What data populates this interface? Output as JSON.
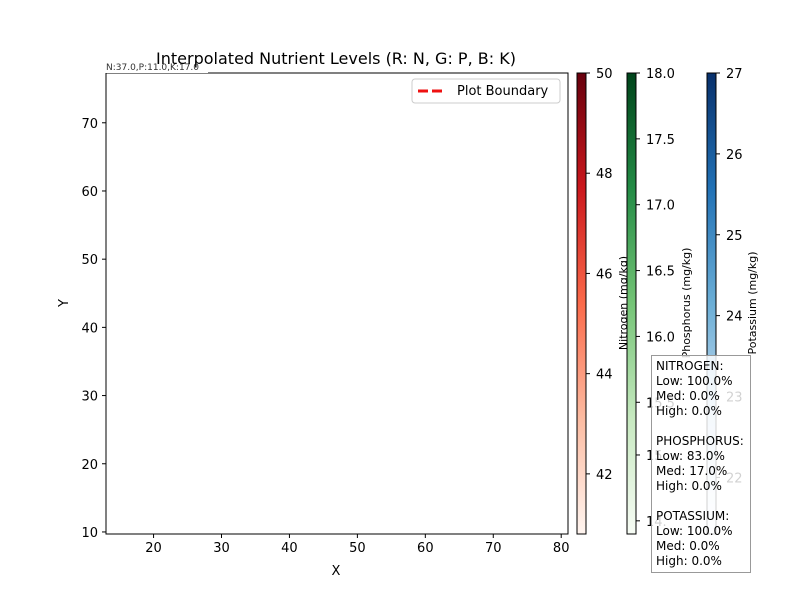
{
  "chart_data": {
    "type": "heatmap",
    "title": "Interpolated Nutrient Levels (R: N, G: P, B: K)",
    "xlabel": "X",
    "ylabel": "Y",
    "xlim": [
      13,
      81
    ],
    "ylim": [
      9.7,
      77.3
    ],
    "x_ticks": [
      20,
      30,
      40,
      50,
      60,
      70,
      80
    ],
    "y_ticks": [
      10,
      20,
      30,
      40,
      50,
      60,
      70
    ],
    "grid": false,
    "legend": {
      "placement": "top-right",
      "entries": [
        {
          "label": "Plot Boundary",
          "color": "#ee1111",
          "style": "dashed"
        }
      ]
    },
    "point_annotation": "N:37.0,P:11.0,K:17.0",
    "colorbars": [
      {
        "label": "Nitrogen (mg/kg)",
        "range": [
          40.8,
          50
        ],
        "ticks": [
          42,
          44,
          46,
          48,
          50
        ],
        "tick_labels": [
          "42",
          "44",
          "46",
          "48",
          "50"
        ],
        "colors": [
          "#fff5f0",
          "#fcbba1",
          "#fb6a4a",
          "#cb181d",
          "#67000d"
        ]
      },
      {
        "label": "Phosphorus (mg/kg)",
        "range": [
          14.5,
          18.0
        ],
        "ticks": [
          14.6,
          15.1,
          15.5,
          16.0,
          16.5,
          17.0,
          17.5,
          18.0
        ],
        "tick_labels": [
          "14.",
          "15.",
          "15.5",
          "16.0",
          "16.5",
          "17.0",
          "17.5",
          "18.0"
        ],
        "colors": [
          "#f7fcf5",
          "#c7e9c0",
          "#74c476",
          "#238b45",
          "#00441b"
        ]
      },
      {
        "label": "Potassium (mg/kg)",
        "range": [
          21.3,
          27
        ],
        "ticks": [
          22,
          23,
          24,
          25,
          26,
          27
        ],
        "tick_labels": [
          "22",
          "23",
          "24",
          "25",
          "26",
          "27"
        ],
        "colors": [
          "#f7fbff",
          "#c6dbef",
          "#6baed6",
          "#2171b5",
          "#08306b"
        ]
      }
    ]
  },
  "stats_box": {
    "lines": [
      "NITROGEN:",
      "Low: 100.0%",
      "Med: 0.0%",
      "High: 0.0%",
      "",
      "PHOSPHORUS:",
      "Low: 83.0%",
      "Med: 17.0%",
      "High: 0.0%",
      "",
      "POTASSIUM:",
      "Low: 100.0%",
      "Med: 0.0%",
      "High: 0.0%"
    ]
  }
}
